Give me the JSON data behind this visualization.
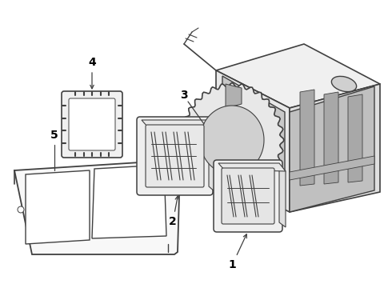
{
  "background_color": "#ffffff",
  "line_color": "#404040",
  "line_width": 1.0,
  "label_color": "#000000",
  "label_fontsize": 10,
  "label_fontweight": "bold",
  "fig_width": 4.9,
  "fig_height": 3.6,
  "dpi": 100
}
